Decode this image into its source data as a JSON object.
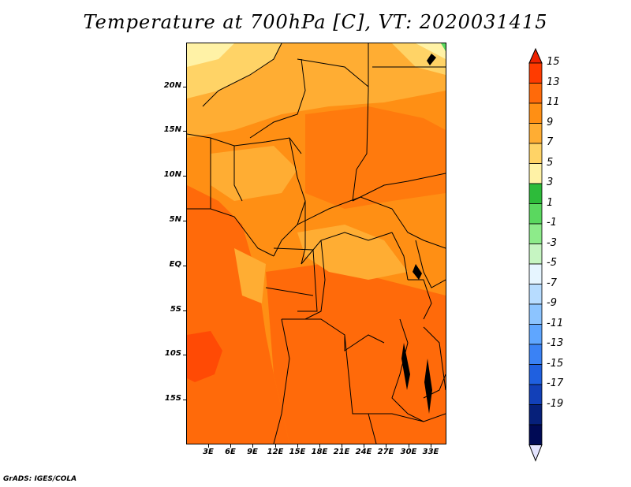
{
  "title": "Temperature at 700hPa [C], VT: 2020031415",
  "credit": "GrADS: IGES/COLA",
  "map": {
    "y_ticks": [
      "20N",
      "15N",
      "10N",
      "5N",
      "EQ",
      "5S",
      "10S",
      "15S"
    ],
    "x_ticks": [
      "3E",
      "6E",
      "9E",
      "12E",
      "15E",
      "18E",
      "21E",
      "24E",
      "27E",
      "30E",
      "33E"
    ]
  },
  "colorbar": {
    "levels": [
      "15",
      "13",
      "11",
      "9",
      "7",
      "5",
      "3",
      "1",
      "-1",
      "-3",
      "-5",
      "-7",
      "-9",
      "-11",
      "-13",
      "-15",
      "-17",
      "-19"
    ],
    "colors": [
      "#ff3b00",
      "#ff6a0a",
      "#ff8f14",
      "#ffad33",
      "#ffd366",
      "#fff2a6",
      "#2dbb3a",
      "#5ad85f",
      "#8deb8a",
      "#c6f5c2",
      "#e6f5ff",
      "#b7dcff",
      "#8cc4ff",
      "#5fa6ff",
      "#3a82f5",
      "#1f60e0",
      "#1240b8",
      "#06207a",
      "#000a55"
    ],
    "top_color": "#ee2200",
    "bottom_color": "#e4e4ff"
  }
}
